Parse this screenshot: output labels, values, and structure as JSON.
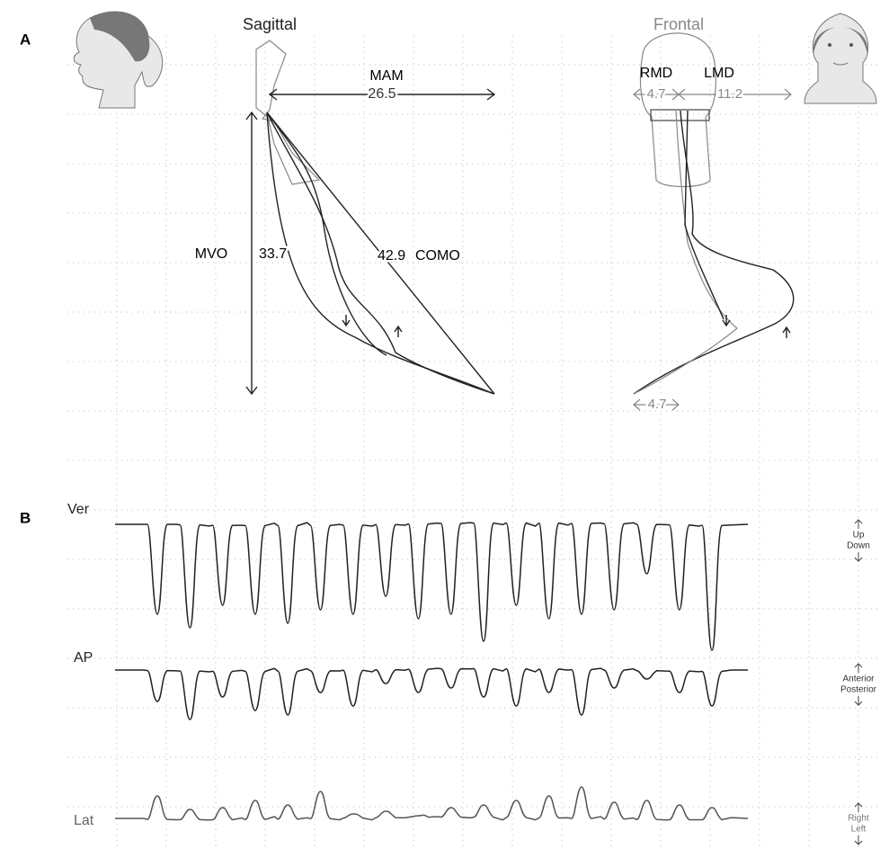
{
  "panel_a": {
    "label": "A",
    "sagittal": {
      "title": "Sagittal",
      "mam_label": "MAM",
      "mam_value": 26.5,
      "mvo_label": "MVO",
      "mvo_value": 33.7,
      "como_value": 42.9,
      "como_label": "COMO"
    },
    "frontal": {
      "title": "Frontal",
      "rmd_label": "RMD",
      "rmd_value": 4.7,
      "lmd_label": "LMD",
      "lmd_value": 11.2,
      "bottom_value": 4.7
    }
  },
  "panel_b": {
    "label": "B",
    "traces": [
      {
        "name": "Ver",
        "up": "Up",
        "down": "Down"
      },
      {
        "name": "AP",
        "up": "Anterior",
        "down": "Posterior"
      },
      {
        "name": "Lat",
        "up": "Right",
        "down": "Left"
      }
    ]
  }
}
